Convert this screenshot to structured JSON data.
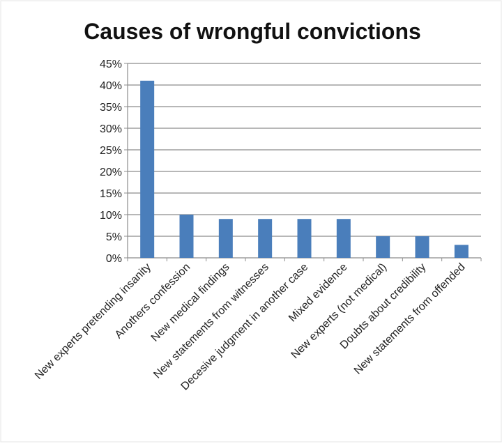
{
  "chart_data": {
    "type": "bar",
    "title": "Causes of wrongful convictions",
    "xlabel": "",
    "ylabel": "",
    "ylim": [
      0,
      45
    ],
    "yticks": [
      "0%",
      "5%",
      "10%",
      "15%",
      "20%",
      "25%",
      "30%",
      "35%",
      "40%",
      "45%"
    ],
    "grid": true,
    "bar_color": "#4a7ebb",
    "categories": [
      "New experts pretending insanity",
      "Anothers confession",
      "New medical findings",
      "New statements from witnesses",
      "Decesive judgment in another case",
      "Mixed evidence",
      "New experts (not medical)",
      "Doubts about credibility",
      "New statements from offended"
    ],
    "values": [
      41,
      10,
      9,
      9,
      9,
      9,
      5,
      5,
      3
    ]
  }
}
